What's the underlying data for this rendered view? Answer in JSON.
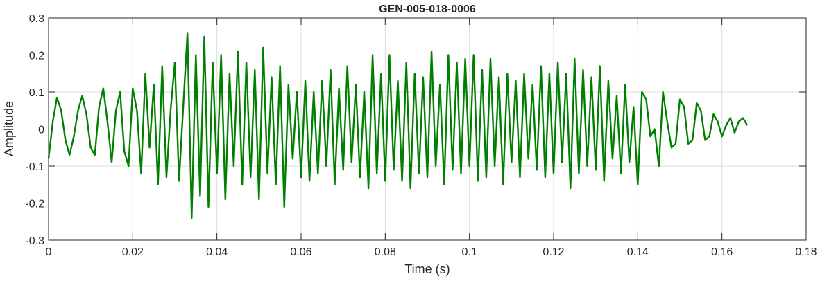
{
  "chart_data": {
    "type": "line",
    "title": "GEN-005-018-0006",
    "xlabel": "Time (s)",
    "ylabel": "Amplitude",
    "xlim": [
      0,
      0.18
    ],
    "ylim": [
      -0.3,
      0.3
    ],
    "xticks": [
      "0",
      "0.02",
      "0.04",
      "0.06",
      "0.08",
      "0.1",
      "0.12",
      "0.14",
      "0.16",
      "0.18"
    ],
    "yticks": [
      "-0.3",
      "-0.2",
      "-0.1",
      "0",
      "0.1",
      "0.2",
      "0.3"
    ],
    "grid": true,
    "line_color": "#008000",
    "x_start": 0,
    "x_step": 0.001,
    "values": [
      -0.08,
      0.02,
      0.085,
      0.05,
      -0.03,
      -0.07,
      -0.02,
      0.05,
      0.09,
      0.04,
      -0.05,
      -0.07,
      0.06,
      0.11,
      0.02,
      -0.09,
      0.05,
      0.1,
      -0.06,
      -0.1,
      0.11,
      0.05,
      -0.12,
      0.15,
      -0.05,
      0.12,
      -0.15,
      0.17,
      -0.13,
      0.05,
      0.18,
      -0.14,
      0.06,
      0.26,
      -0.24,
      0.2,
      -0.18,
      0.25,
      -0.21,
      0.18,
      -0.12,
      0.2,
      -0.19,
      0.15,
      -0.1,
      0.21,
      -0.15,
      0.18,
      -0.13,
      0.16,
      -0.19,
      0.22,
      -0.12,
      0.14,
      -0.15,
      0.17,
      -0.21,
      0.12,
      -0.08,
      0.1,
      -0.13,
      0.13,
      -0.14,
      0.1,
      -0.12,
      0.13,
      -0.1,
      0.16,
      -0.15,
      0.11,
      -0.11,
      0.17,
      -0.09,
      0.12,
      -0.13,
      0.1,
      -0.16,
      0.2,
      -0.12,
      0.15,
      -0.14,
      0.2,
      -0.11,
      0.13,
      -0.14,
      0.18,
      -0.16,
      0.15,
      -0.12,
      0.14,
      -0.13,
      0.21,
      -0.1,
      0.12,
      -0.15,
      0.2,
      -0.11,
      0.18,
      -0.12,
      0.19,
      -0.1,
      0.2,
      -0.14,
      0.16,
      -0.13,
      0.19,
      -0.1,
      0.14,
      -0.15,
      0.15,
      -0.09,
      0.13,
      -0.13,
      0.15,
      -0.08,
      0.12,
      -0.11,
      0.17,
      -0.13,
      0.15,
      -0.12,
      0.18,
      -0.09,
      0.15,
      -0.16,
      0.19,
      -0.12,
      0.16,
      -0.1,
      0.14,
      -0.11,
      0.17,
      -0.14,
      0.13,
      -0.08,
      0.09,
      -0.12,
      0.12,
      -0.09,
      0.06,
      -0.15,
      0.1,
      0.08,
      -0.02,
      0.0,
      -0.1,
      0.1,
      0.02,
      -0.05,
      -0.04,
      0.08,
      0.06,
      -0.04,
      -0.03,
      0.07,
      0.05,
      -0.03,
      -0.02,
      0.04,
      0.02,
      -0.02,
      0.01,
      0.03,
      -0.01,
      0.02,
      0.03,
      0.01
    ]
  }
}
